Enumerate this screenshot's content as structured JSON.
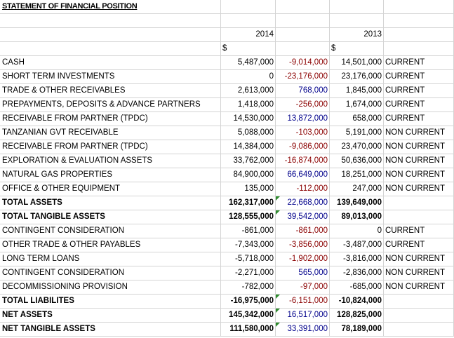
{
  "title": "STATEMENT OF FINANCIAL POSITION",
  "years": [
    "2014",
    "2013"
  ],
  "currency": "$",
  "colors": {
    "negative_diff": "#8b0000",
    "positive_diff": "#00008b",
    "comment_marker": "#2e8b2e"
  },
  "rows": [
    {
      "label": "CASH",
      "v2014": "5,487,000",
      "diff": "-9,014,000",
      "v2013": "14,501,000",
      "class": "CURRENT"
    },
    {
      "label": "SHORT TERM INVESTMENTS",
      "v2014": "0",
      "diff": "-23,176,000",
      "v2013": "23,176,000",
      "class": "CURRENT"
    },
    {
      "label": "TRADE & OTHER RECEIVABLES",
      "v2014": "2,613,000",
      "diff": "768,000",
      "v2013": "1,845,000",
      "class": "CURRENT"
    },
    {
      "label": "PREPAYMENTS, DEPOSITS & ADVANCE PARTNERS",
      "v2014": "1,418,000",
      "diff": "-256,000",
      "v2013": "1,674,000",
      "class": "CURRENT"
    },
    {
      "label": "RECEIVABLE FROM PARTNER (TPDC)",
      "v2014": "14,530,000",
      "diff": "13,872,000",
      "v2013": "658,000",
      "class": "CURRENT"
    },
    {
      "label": "TANZANIAN GVT RECEIVABLE",
      "v2014": "5,088,000",
      "diff": "-103,000",
      "v2013": "5,191,000",
      "class": "NON CURRENT"
    },
    {
      "label": "RECEIVABLE FROM PARTNER (TPDC)",
      "v2014": "14,384,000",
      "diff": "-9,086,000",
      "v2013": "23,470,000",
      "class": "NON CURRENT"
    },
    {
      "label": "EXPLORATION & EVALUATION ASSETS",
      "v2014": "33,762,000",
      "diff": "-16,874,000",
      "v2013": "50,636,000",
      "class": "NON CURRENT"
    },
    {
      "label": "NATURAL GAS PROPERTIES",
      "v2014": "84,900,000",
      "diff": "66,649,000",
      "v2013": "18,251,000",
      "class": "NON CURRENT"
    },
    {
      "label": "OFFICE & OTHER EQUIPMENT",
      "v2014": "135,000",
      "diff": "-112,000",
      "v2013": "247,000",
      "class": "NON CURRENT"
    },
    {
      "label": "TOTAL ASSETS",
      "v2014": "162,317,000",
      "diff": "22,668,000",
      "v2013": "139,649,000",
      "class": ""
    },
    {
      "label": "TOTAL TANGIBLE ASSETS",
      "v2014": "128,555,000",
      "diff": "39,542,000",
      "v2013": "89,013,000",
      "class": ""
    },
    {
      "label": "CONTINGENT CONSIDERATION",
      "v2014": "-861,000",
      "diff": "-861,000",
      "v2013": "0",
      "class": "CURRENT"
    },
    {
      "label": "OTHER TRADE & OTHER PAYABLES",
      "v2014": "-7,343,000",
      "diff": "-3,856,000",
      "v2013": "-3,487,000",
      "class": "CURRENT"
    },
    {
      "label": "LONG TERM LOANS",
      "v2014": "-5,718,000",
      "diff": "-1,902,000",
      "v2013": "-3,816,000",
      "class": "NON CURRENT"
    },
    {
      "label": "CONTINGENT CONSIDERATION",
      "v2014": "-2,271,000",
      "diff": "565,000",
      "v2013": "-2,836,000",
      "class": "NON CURRENT"
    },
    {
      "label": "DECOMMISSIONING PROVISION",
      "v2014": "-782,000",
      "diff": "-97,000",
      "v2013": "-685,000",
      "class": "NON CURRENT"
    },
    {
      "label": "TOTAL LIABILITES",
      "v2014": "-16,975,000",
      "diff": "-6,151,000",
      "v2013": "-10,824,000",
      "class": ""
    },
    {
      "label": "NET ASSETS",
      "v2014": "145,342,000",
      "diff": "16,517,000",
      "v2013": "128,825,000",
      "class": ""
    },
    {
      "label": "NET TANGIBLE ASSETS",
      "v2014": "111,580,000",
      "diff": "33,391,000",
      "v2013": "78,189,000",
      "class": ""
    }
  ]
}
